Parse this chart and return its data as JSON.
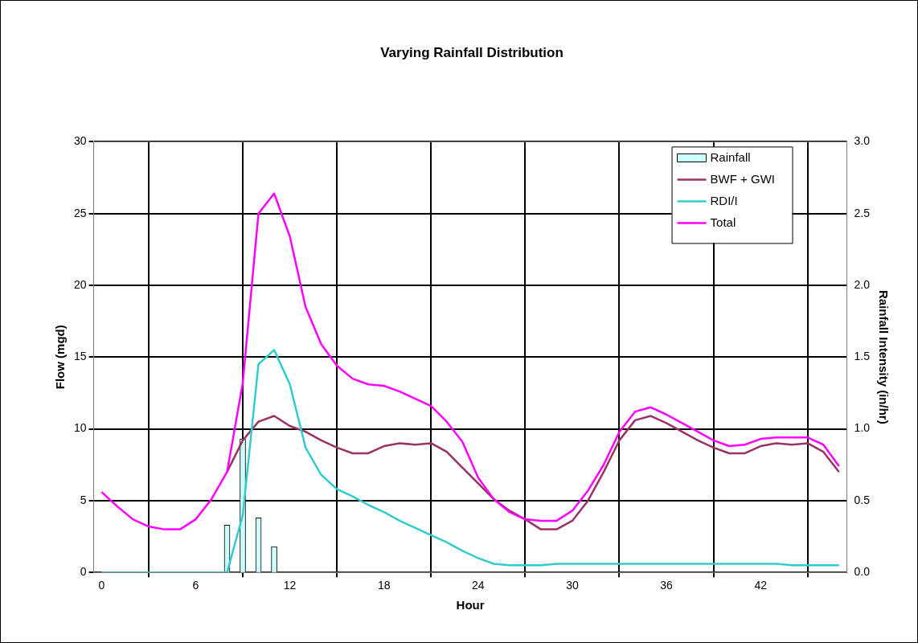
{
  "chart_data": {
    "type": "line",
    "title": "Varying Rainfall Distribution",
    "xlabel": "Hour",
    "ylabel": "Flow (mgd)",
    "y2label": "Rainfall Intensity (in/hr)",
    "x": [
      0,
      1,
      2,
      3,
      4,
      5,
      6,
      7,
      8,
      9,
      10,
      11,
      12,
      13,
      14,
      15,
      16,
      17,
      18,
      19,
      20,
      21,
      22,
      23,
      24,
      25,
      26,
      27,
      28,
      29,
      30,
      31,
      32,
      33,
      34,
      35,
      36,
      37,
      38,
      39,
      40,
      41,
      42,
      43,
      44,
      45,
      46,
      47
    ],
    "series": [
      {
        "name": "Rainfall",
        "type": "bar",
        "axis": "y2",
        "color": "#ccffff",
        "x": [
          8,
          9,
          10,
          11
        ],
        "values": [
          0.33,
          0.93,
          0.38,
          0.18
        ]
      },
      {
        "name": "BWF + GWI",
        "color": "#993366",
        "values": [
          null,
          null,
          null,
          null,
          null,
          null,
          null,
          null,
          7.0,
          9.2,
          10.5,
          10.9,
          10.2,
          9.8,
          9.2,
          8.7,
          8.3,
          8.3,
          8.8,
          9.0,
          8.9,
          9.0,
          8.4,
          7.3,
          6.2,
          5.1,
          4.3,
          3.7,
          3.0,
          3.0,
          3.6,
          5.0,
          7.0,
          9.2,
          10.6,
          10.9,
          10.4,
          9.8,
          9.2,
          8.7,
          8.3,
          8.3,
          8.8,
          9.0,
          8.9,
          9.0,
          8.4,
          7.0
        ]
      },
      {
        "name": "RDI/I",
        "color": "#33cccc",
        "values": [
          0,
          0,
          0,
          0,
          0,
          0,
          0,
          0,
          0,
          4.0,
          14.5,
          15.5,
          13.1,
          8.7,
          6.8,
          5.8,
          5.3,
          4.7,
          4.2,
          3.6,
          3.1,
          2.6,
          2.1,
          1.5,
          1.0,
          0.6,
          0.5,
          0.5,
          0.5,
          0.6,
          0.6,
          0.6,
          0.6,
          0.6,
          0.6,
          0.6,
          0.6,
          0.6,
          0.6,
          0.6,
          0.6,
          0.6,
          0.6,
          0.6,
          0.5,
          0.5,
          0.5,
          0.5
        ]
      },
      {
        "name": "Total",
        "color": "#ff00ff",
        "values": [
          5.6,
          4.6,
          3.7,
          3.2,
          3.0,
          3.0,
          3.7,
          5.1,
          7.0,
          13.2,
          25.0,
          26.4,
          23.4,
          18.5,
          15.9,
          14.4,
          13.5,
          13.1,
          13.0,
          12.6,
          12.1,
          11.6,
          10.5,
          9.1,
          6.6,
          5.1,
          4.2,
          3.7,
          3.6,
          3.6,
          4.3,
          5.7,
          7.5,
          9.8,
          11.2,
          11.5,
          11.0,
          10.4,
          9.8,
          9.2,
          8.8,
          8.9,
          9.3,
          9.4,
          9.4,
          9.4,
          8.9,
          7.4
        ]
      }
    ],
    "xlim": [
      -0.5,
      47.5
    ],
    "xticks": [
      0,
      6,
      12,
      18,
      24,
      30,
      36,
      42
    ],
    "ylim": [
      0,
      30
    ],
    "yticks": [
      0,
      5,
      10,
      15,
      20,
      25,
      30
    ],
    "y2lim": [
      0,
      3
    ],
    "y2ticks": [
      {
        "value": 0,
        "label": "0.0"
      },
      {
        "value": 0.5,
        "label": "0.5"
      },
      {
        "value": 1,
        "label": "1.0"
      },
      {
        "value": 1.5,
        "label": "1.5"
      },
      {
        "value": 2,
        "label": "2.0"
      },
      {
        "value": 2.5,
        "label": "2.5"
      },
      {
        "value": 3,
        "label": "3.0"
      }
    ],
    "grid": true,
    "legend": "top right",
    "marker": "none",
    "line_style": "solid"
  }
}
